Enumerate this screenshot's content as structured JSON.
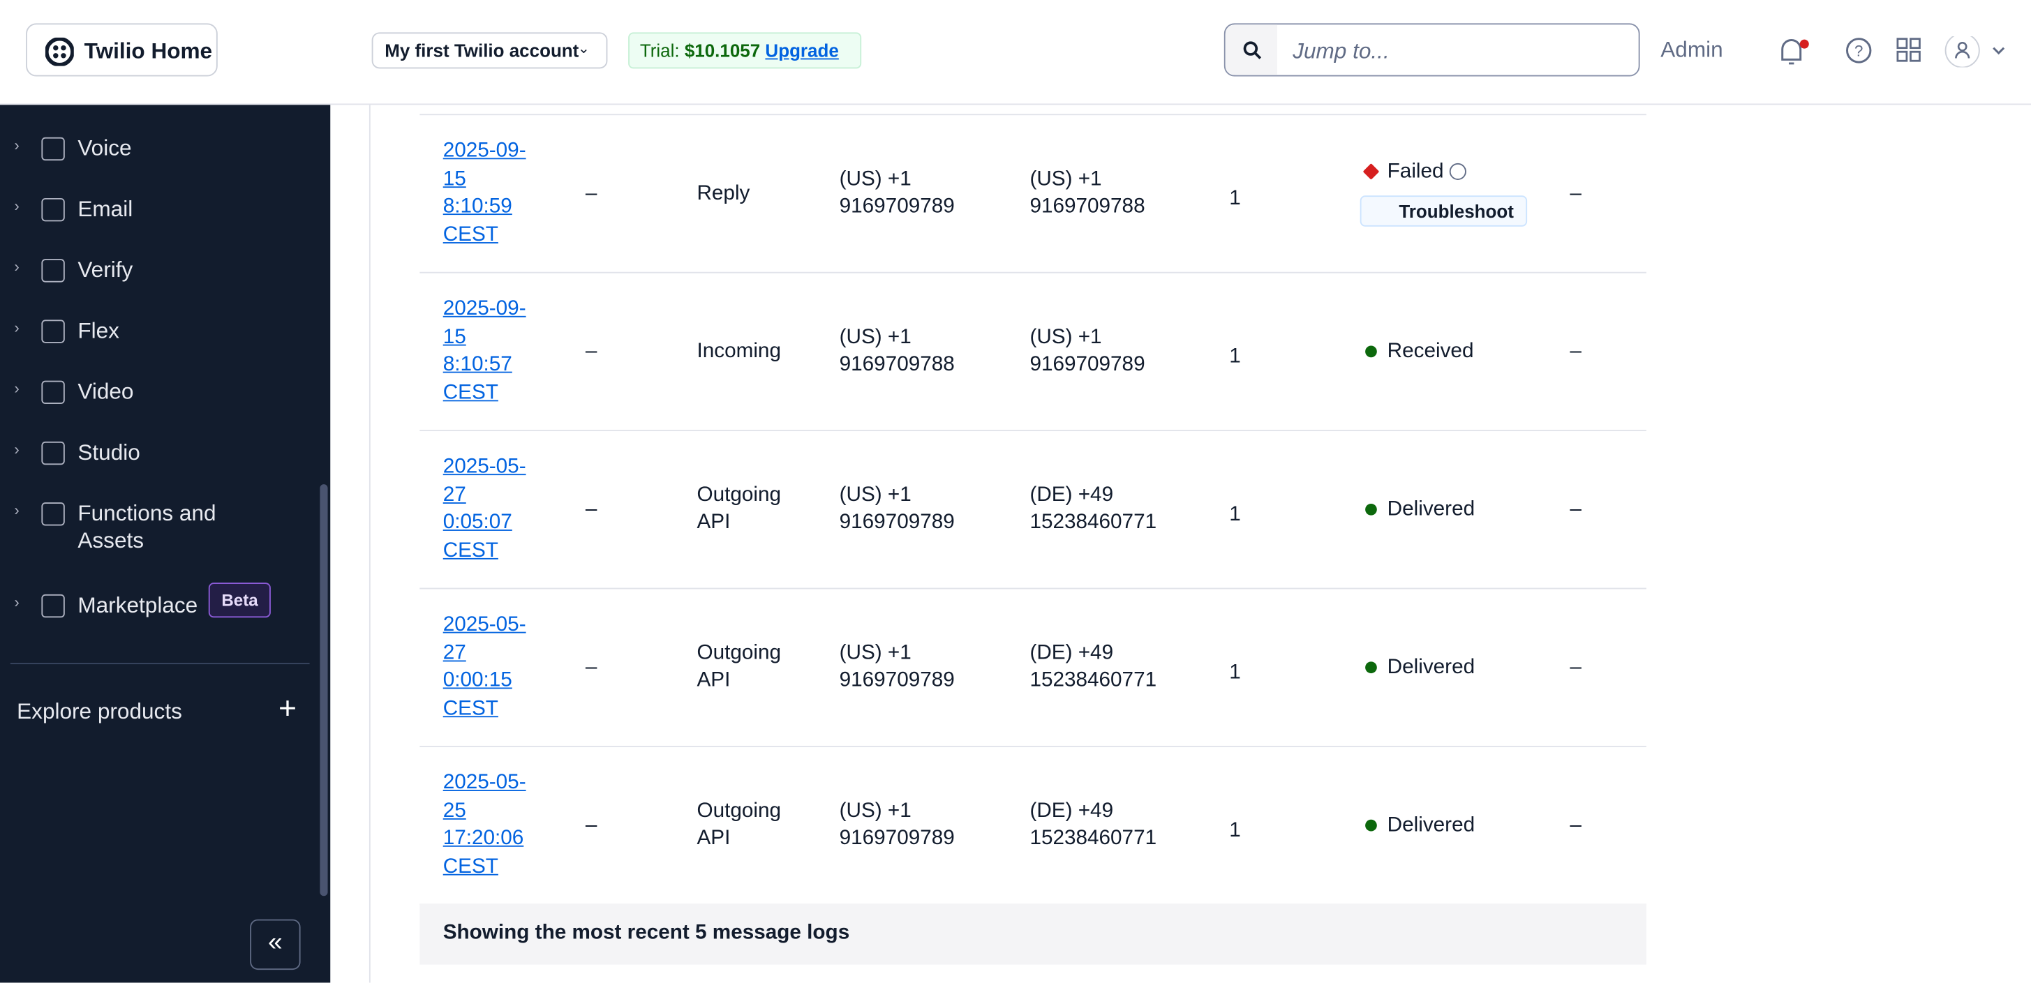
{
  "header": {
    "logo": "Twilio Home",
    "account": "My first Twilio account",
    "trial_label": "Trial:",
    "trial_amount": "$10.1057",
    "upgrade": "Upgrade",
    "search_placeholder": "Jump to...",
    "admin": "Admin"
  },
  "sidebar": {
    "items": [
      "Voice",
      "Email",
      "Verify",
      "Flex",
      "Video",
      "Studio",
      "Functions and Assets",
      "Marketplace"
    ],
    "badge": "Beta",
    "explore": "Explore products"
  },
  "table": {
    "rows": [
      [
        "2025-09-15 8:10:59 CEST",
        "–",
        "Reply",
        "(US) +1 9169709789",
        "(US) +1 9169709788",
        "1",
        "Failed",
        "–"
      ],
      [
        "2025-09-15 8:10:57 CEST",
        "–",
        "Incoming",
        "(US) +1 9169709788",
        "(US) +1 9169709789",
        "1",
        "Received",
        "–"
      ],
      [
        "2025-05-27 0:05:07 CEST",
        "–",
        "Outgoing API",
        "(US) +1 9169709789",
        "(DE) +49 15238460771",
        "1",
        "Delivered",
        "–"
      ],
      [
        "2025-05-27 0:00:15 CEST",
        "–",
        "Outgoing API",
        "(US) +1 9169709789",
        "(DE) +49 15238460771",
        "1",
        "Delivered",
        "–"
      ],
      [
        "2025-05-25 17:20:06 CEST",
        "–",
        "Outgoing API",
        "(US) +1 9169709789",
        "(DE) +49 15238460771",
        "1",
        "Delivered",
        "–"
      ]
    ],
    "troubleshoot": "Troubleshoot",
    "footer": "Showing the most recent 5 message logs"
  }
}
